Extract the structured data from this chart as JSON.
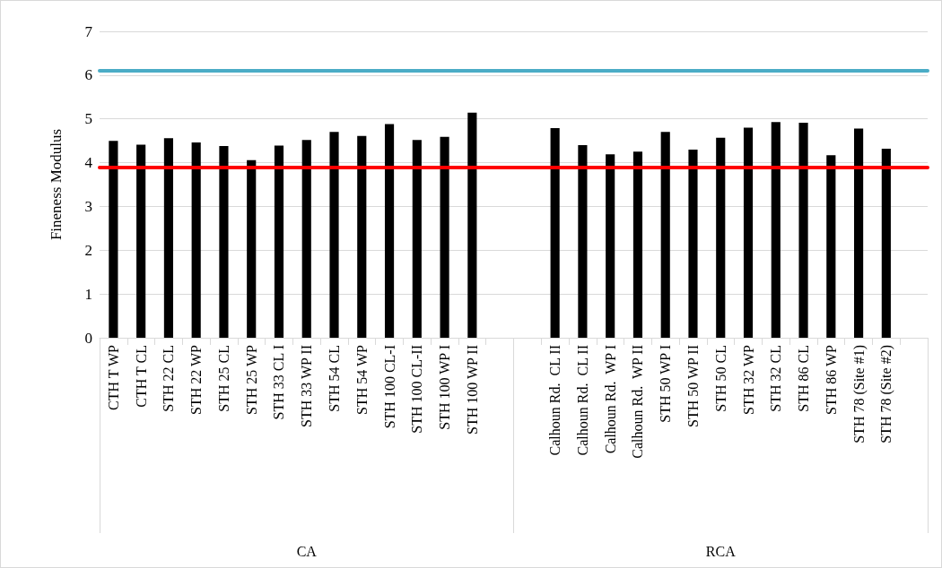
{
  "chart_data": {
    "type": "bar",
    "ylabel": "Fineness Modulus",
    "categories": [
      "CTH T WP",
      "CTH T CL",
      "STH 22 CL",
      "STH 22 WP",
      "STH 25 CL",
      "STH 25 WP",
      "STH 33 CL I",
      "STH 33 WP II",
      "STH 54 CL",
      "STH 54 WP",
      "STH 100 CL-I",
      "STH 100 CL-II",
      "STH 100 WP I",
      "STH 100 WP II",
      null,
      null,
      "Calhoun Rd.  CL II",
      "Calhoun Rd.  CL II",
      "Calhoun Rd.  WP I",
      "Calhoun Rd.  WP II",
      "STH 50 WP I",
      "STH 50 WP II",
      "STH 50 CL",
      "STH 32 WP",
      "STH 32 CL",
      "STH 86 CL",
      "STH 86 WP",
      "STH 78 (Site #1)",
      "STH 78 (Site #2)",
      null
    ],
    "values": [
      4.5,
      4.41,
      4.56,
      4.46,
      4.38,
      4.06,
      4.39,
      4.52,
      4.7,
      4.61,
      4.88,
      4.52,
      4.59,
      5.14,
      null,
      null,
      4.79,
      4.4,
      4.19,
      4.25,
      4.7,
      4.3,
      4.57,
      4.8,
      4.93,
      4.91,
      4.17,
      4.78,
      4.32,
      null
    ],
    "color": "#000000",
    "annotations": [
      "CA",
      "RCA"
    ],
    "ref_lines": [
      {
        "axis": "y",
        "value": 6.1,
        "color": "#4bacc6"
      },
      {
        "axis": "y",
        "value": 3.9,
        "color": "#ff0000"
      }
    ],
    "ylim": [
      0,
      7
    ],
    "yticks": [
      0,
      1,
      2,
      3,
      4,
      5,
      6,
      7
    ],
    "grid": "y"
  }
}
